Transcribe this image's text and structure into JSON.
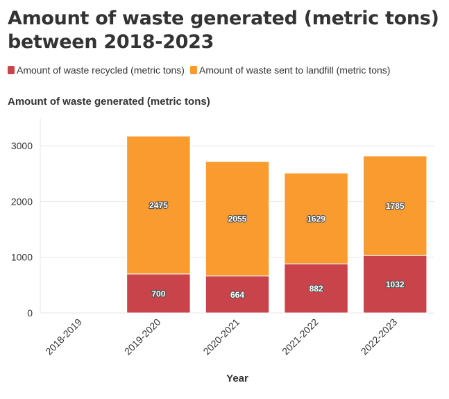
{
  "title": "Amount of waste generated (metric tons) between 2018-2023",
  "legend": {
    "recycled": "Amount of waste recycled (metric tons)",
    "landfill": "Amount of waste sent to landfill (metric tons)"
  },
  "colors": {
    "recycled": "#c8434a",
    "landfill": "#f99b2e",
    "grid": "#e6e6e6"
  },
  "chart_data": {
    "type": "bar",
    "stacked": true,
    "ylabel": "Amount of waste generated (metric tons)",
    "xlabel": "Year",
    "categories": [
      "2018-2019",
      "2019-2020",
      "2020-2021",
      "2021-2022",
      "2022-2023"
    ],
    "series": [
      {
        "name": "Amount of waste recycled (metric tons)",
        "values": [
          null,
          700,
          664,
          882,
          1032
        ]
      },
      {
        "name": "Amount of waste sent to landfill (metric tons)",
        "values": [
          null,
          2475,
          2055,
          1629,
          1785
        ]
      }
    ],
    "yticks": [
      0,
      1000,
      2000,
      3000
    ],
    "ylim": [
      0,
      3500
    ],
    "grid": true,
    "legend_position": "top-left"
  }
}
